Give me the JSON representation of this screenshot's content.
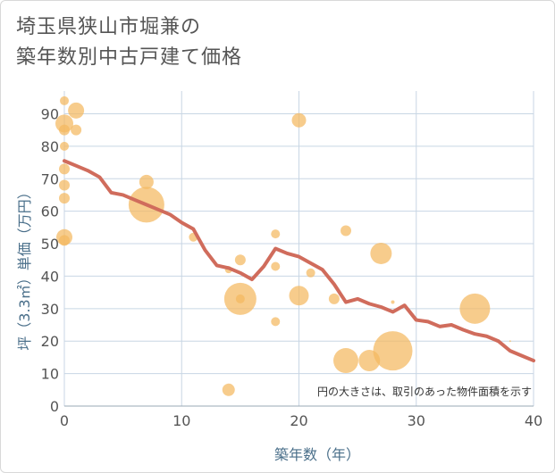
{
  "chart_data": {
    "type": "scatter",
    "title_line1": "埼玉県狭山市堀兼の",
    "title_line2": "築年数別中古戸建て価格",
    "xlabel": "築年数（年）",
    "ylabel": "坪（3.3㎡）単価（万円）",
    "xlim": [
      0,
      40
    ],
    "ylim": [
      0,
      97
    ],
    "x_ticks": [
      0,
      10,
      20,
      30,
      40
    ],
    "y_ticks": [
      0,
      10,
      20,
      30,
      40,
      50,
      60,
      70,
      80,
      90
    ],
    "note": "円の大きさは、取引のあった物件面積を示す",
    "colors": {
      "bubble": "#f4b860",
      "trend": "#d06c5c",
      "grid": "#c8d6e4",
      "axis_text": "#4a6f8a"
    },
    "points": [
      {
        "x": 0,
        "y": 94,
        "s": 5
      },
      {
        "x": 0,
        "y": 87,
        "s": 10
      },
      {
        "x": 0,
        "y": 85,
        "s": 6
      },
      {
        "x": 0,
        "y": 80,
        "s": 5
      },
      {
        "x": 0,
        "y": 73,
        "s": 6
      },
      {
        "x": 0,
        "y": 68,
        "s": 6
      },
      {
        "x": 0,
        "y": 64,
        "s": 6
      },
      {
        "x": 0,
        "y": 52,
        "s": 9
      },
      {
        "x": 0,
        "y": 51,
        "s": 6
      },
      {
        "x": 1,
        "y": 91,
        "s": 9
      },
      {
        "x": 1,
        "y": 85,
        "s": 6
      },
      {
        "x": 7,
        "y": 69,
        "s": 8
      },
      {
        "x": 7,
        "y": 62,
        "s": 20
      },
      {
        "x": 11,
        "y": 52,
        "s": 5
      },
      {
        "x": 14,
        "y": 5,
        "s": 7
      },
      {
        "x": 14,
        "y": 42,
        "s": 4
      },
      {
        "x": 15,
        "y": 45,
        "s": 6
      },
      {
        "x": 15,
        "y": 33,
        "s": 18
      },
      {
        "x": 15,
        "y": 33,
        "s": 5
      },
      {
        "x": 18,
        "y": 53,
        "s": 5
      },
      {
        "x": 18,
        "y": 43,
        "s": 5
      },
      {
        "x": 18,
        "y": 26,
        "s": 5
      },
      {
        "x": 20,
        "y": 88,
        "s": 8
      },
      {
        "x": 20,
        "y": 34,
        "s": 11
      },
      {
        "x": 21,
        "y": 41,
        "s": 5
      },
      {
        "x": 23,
        "y": 33,
        "s": 6
      },
      {
        "x": 24,
        "y": 54,
        "s": 6
      },
      {
        "x": 24,
        "y": 14,
        "s": 14
      },
      {
        "x": 26,
        "y": 14,
        "s": 12
      },
      {
        "x": 27,
        "y": 47,
        "s": 12
      },
      {
        "x": 28,
        "y": 32,
        "s": 2
      },
      {
        "x": 28,
        "y": 17,
        "s": 22
      },
      {
        "x": 35,
        "y": 30,
        "s": 17
      },
      {
        "x": 38,
        "y": 20,
        "s": 1
      }
    ],
    "trend": {
      "x": [
        0,
        1,
        2,
        3,
        4,
        5,
        6,
        7,
        8,
        9,
        10,
        11,
        12,
        13,
        14,
        15,
        16,
        17,
        18,
        19,
        20,
        21,
        22,
        23,
        24,
        25,
        26,
        27,
        28,
        29,
        30,
        31,
        32,
        33,
        34,
        35,
        36,
        37,
        38,
        39,
        40
      ],
      "y": [
        75.5,
        74,
        72.5,
        70.5,
        65.7,
        65,
        63.5,
        62,
        60.5,
        59,
        56.5,
        54.5,
        48,
        43.3,
        42.5,
        41,
        39,
        43,
        48.5,
        47,
        46,
        44,
        42,
        37.5,
        32,
        33,
        31.5,
        30.5,
        29,
        31,
        26.5,
        26,
        24.5,
        25,
        23.5,
        22.2,
        21.5,
        20,
        17,
        15.5,
        14
      ]
    }
  }
}
